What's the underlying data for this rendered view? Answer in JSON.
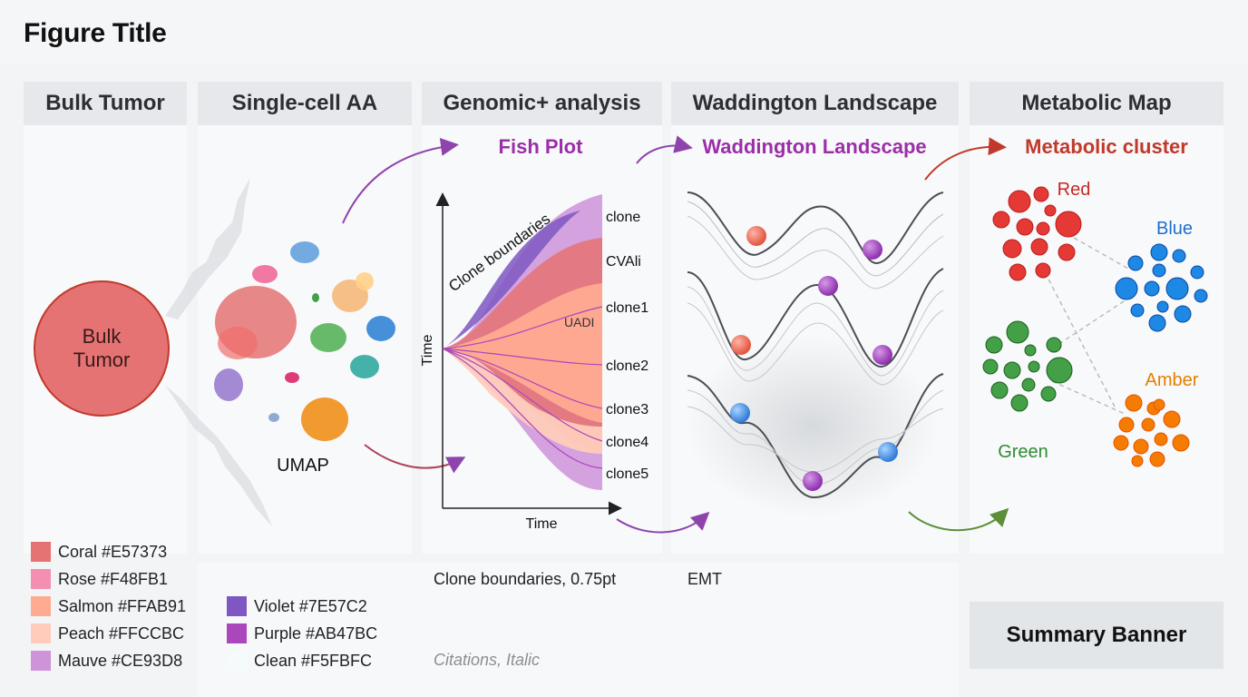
{
  "figure_title": "Figure Title",
  "panels": {
    "bulk": {
      "header": "Bulk Tumor",
      "circle_line1": "Bulk",
      "circle_line2": "Tumor"
    },
    "single_cell": {
      "header": "Single-cell AA",
      "umap_label": "UMAP"
    },
    "genomic": {
      "header": "Genomic+ analysis",
      "subtitle": "Fish Plot",
      "y_axis": "Time",
      "x_axis": "Time",
      "diag_label": "Clone boundaries",
      "inner_label": "UADI",
      "clone_labels": [
        "clone",
        "CVAli",
        "clone1",
        "clone2",
        "clone3",
        "clone4",
        "clone5"
      ]
    },
    "waddington": {
      "header": "Waddington Landscape",
      "subtitle": "Waddington Landscape"
    },
    "metabolic": {
      "header": "Metabolic Map",
      "subtitle": "Metabolic cluster",
      "clusters": [
        {
          "name": "Red",
          "color": "#e53935"
        },
        {
          "name": "Blue",
          "color": "#1e88e5"
        },
        {
          "name": "Green",
          "color": "#43a047"
        },
        {
          "name": "Amber",
          "color": "#f57c00"
        }
      ]
    }
  },
  "legend": [
    {
      "label": "Coral #E57373",
      "color": "#E57373"
    },
    {
      "label": "Rose #F48FB1",
      "color": "#F48FB1"
    },
    {
      "label": "Salmon #FFAB91",
      "color": "#FFAB91"
    },
    {
      "label": "Peach #FFCCBC",
      "color": "#FFCCBC"
    },
    {
      "label": "Mauve #CE93D8",
      "color": "#CE93D8"
    },
    {
      "label": "Violet #7E57C2",
      "color": "#7E57C2"
    },
    {
      "label": "Purple #AB47BC",
      "color": "#AB47BC"
    },
    {
      "label": "Clean #F5FBFC",
      "color": "#F5FBFC"
    }
  ],
  "notes": {
    "clone_boundaries": "Clone boundaries, 0.75pt",
    "emt": "EMT",
    "citations": "Citations, Italic"
  },
  "summary_banner": "Summary Banner",
  "colors": {
    "purple_arrow": "#8e44ad",
    "red_arrow": "#c0392b",
    "green_arrow": "#5b8f3a",
    "title_purple": "#9b2fa8",
    "title_red": "#c0392b"
  }
}
